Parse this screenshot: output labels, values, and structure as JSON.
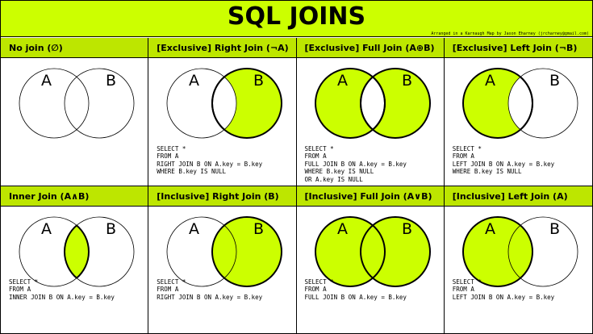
{
  "title": "SQL JOINS",
  "credit": "Arranged in a Karnaugh Map by Jason Eharney (jrcharney@gmail.com)",
  "colors": {
    "header": "#ccff00",
    "cell_header": "#bde600",
    "fill": "#ccff00",
    "stroke": "#000000"
  },
  "circle_labels": {
    "a": "A",
    "b": "B"
  },
  "cells": [
    {
      "title": "No join (∅)",
      "sql": [],
      "fill": "none"
    },
    {
      "title": "[Exclusive] Right Join (¬A)",
      "sql": [
        "SELECT *",
        "FROM A",
        "RIGHT JOIN B ON A.key = B.key",
        "WHERE B.key IS NULL"
      ],
      "fill": "b_only"
    },
    {
      "title": "[Exclusive] Full Join (A⊕B)",
      "sql": [
        "SELECT *",
        "FROM A",
        "FULL JOIN B ON A.key = B.key",
        "WHERE B.key IS NULL",
        "OR A.key IS NULL"
      ],
      "fill": "xor"
    },
    {
      "title": "[Exclusive] Left Join (¬B)",
      "sql": [
        "SELECT *",
        "FROM A",
        "LEFT JOIN B ON A.key = B.key",
        "WHERE B.key IS NULL"
      ],
      "fill": "a_only"
    },
    {
      "title": "Inner Join (A∧B)",
      "sql": [
        "SELECT *",
        "FROM A",
        "INNER JOIN B ON A.key = B.key"
      ],
      "fill": "intersection"
    },
    {
      "title": "[Inclusive] Right Join (B)",
      "sql": [
        "SELECT *",
        "FROM A",
        "RIGHT JOIN B ON A.key = B.key"
      ],
      "fill": "b"
    },
    {
      "title": "[Inclusive] Full Join (A∨B)",
      "sql": [
        "SELECT *",
        "FROM A",
        "FULL JOIN B ON A.key = B.key"
      ],
      "fill": "union"
    },
    {
      "title": "[Inclusive] Left Join (A)",
      "sql": [
        "SELECT *",
        "FROM A",
        "LEFT JOIN B ON A.key = B.key"
      ],
      "fill": "a"
    }
  ]
}
